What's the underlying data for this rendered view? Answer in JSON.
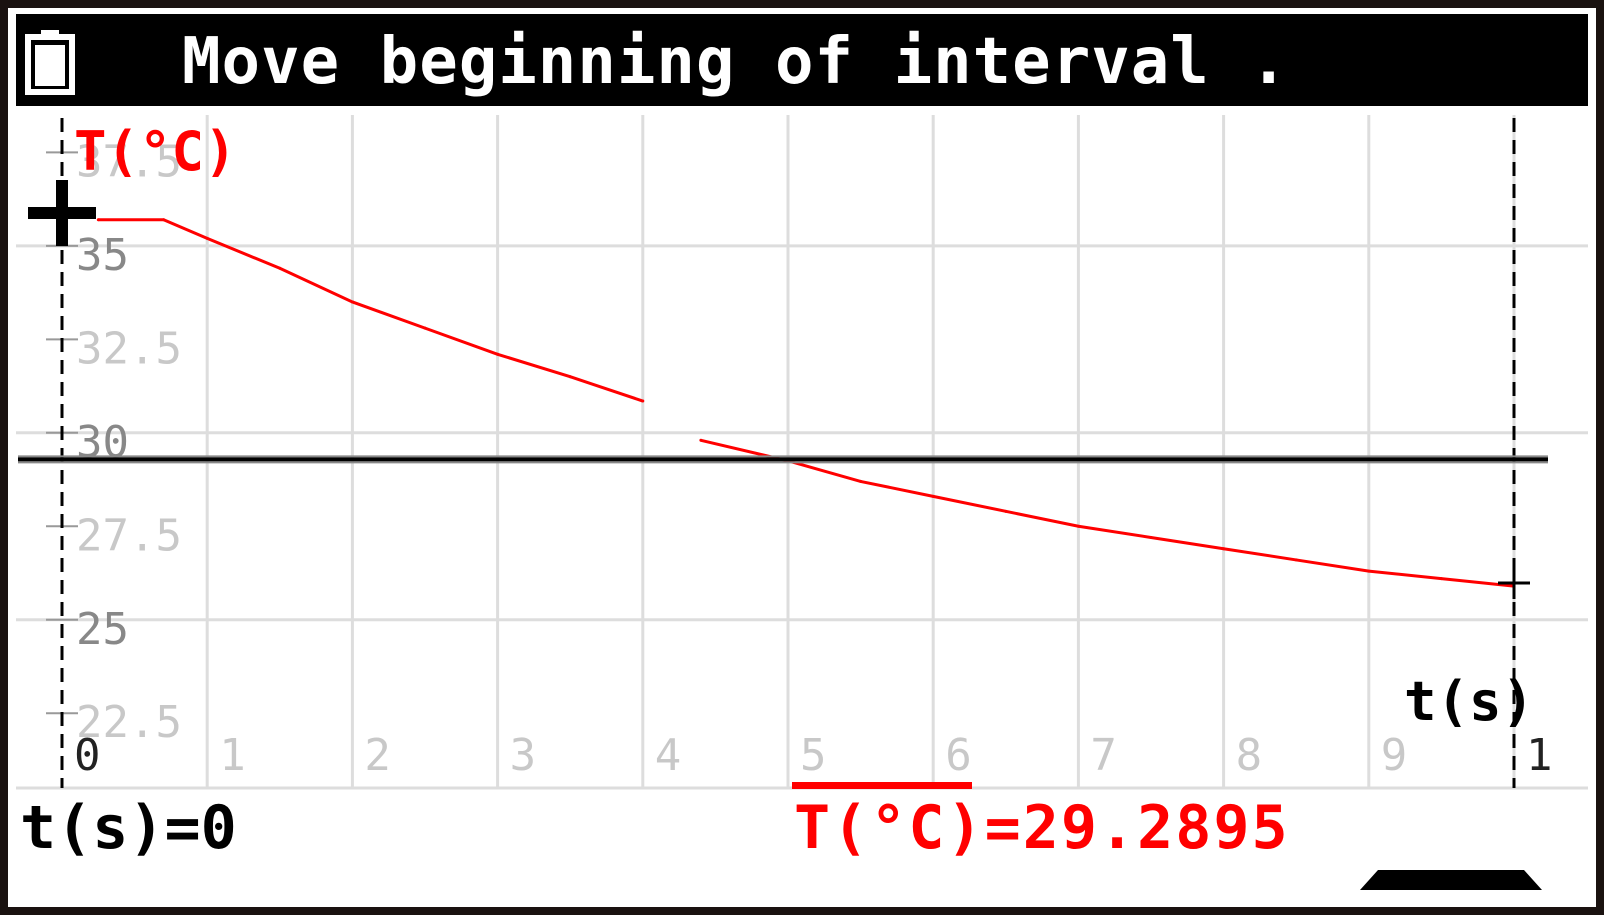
{
  "title_bar": {
    "battery_icon": "battery-icon",
    "message": "Move beginning of interval ."
  },
  "graph": {
    "y_axis_label": "T(°C)",
    "x_axis_label": "t(s)",
    "y_tick_labels": [
      "37.5",
      "35",
      "32.5",
      "30",
      "27.5",
      "25",
      "22.5"
    ],
    "x_tick_labels": [
      "0",
      "1",
      "2",
      "3",
      "4",
      "5",
      "6",
      "7",
      "8",
      "9",
      "1"
    ],
    "colors": {
      "curve": "#ff0000",
      "grid": "#dddddd",
      "dim_tick": "#c8c8c8",
      "bright_tick": "#888888",
      "mean_line": "#888888"
    }
  },
  "status": {
    "cursor_readout": "t(s)=0",
    "mean_readout": "T(°C)=29.2895"
  },
  "chart_data": {
    "type": "line",
    "xlabel": "t(s)",
    "ylabel": "T(°C)",
    "xlim": [
      0,
      10
    ],
    "ylim": [
      20.5,
      38.5
    ],
    "grid": true,
    "mean_value": 29.2895,
    "interval": [
      0,
      10
    ],
    "series": [
      {
        "x": [
          0.25,
          0.7,
          1.0,
          1.5,
          2.0,
          2.5,
          3.0,
          3.5,
          4.0,
          4.4,
          5.0,
          5.5,
          6.0,
          6.5,
          7.0,
          7.5,
          8.0,
          8.5,
          9.0,
          9.5,
          10.0
        ],
        "y": [
          35.7,
          35.7,
          35.2,
          34.4,
          33.5,
          32.8,
          32.1,
          31.5,
          30.85,
          29.8,
          29.25,
          28.7,
          28.3,
          27.9,
          27.5,
          27.2,
          26.9,
          26.6,
          26.3,
          26.1,
          25.9
        ]
      }
    ]
  }
}
